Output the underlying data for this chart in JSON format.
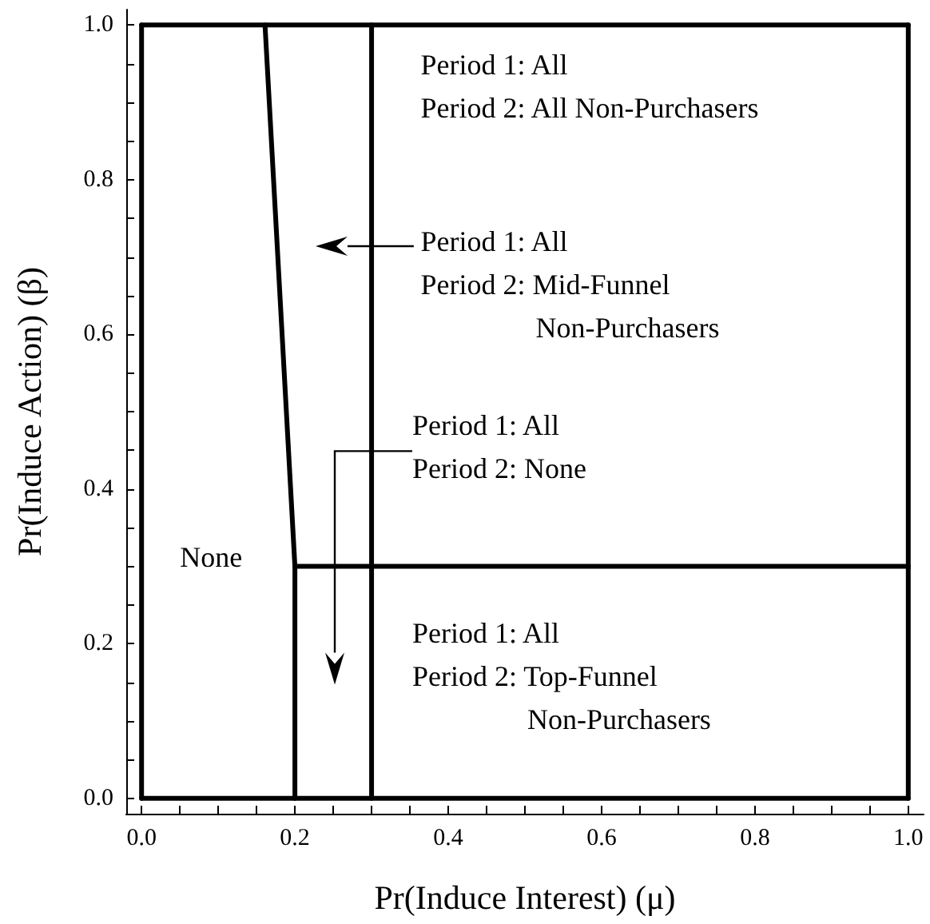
{
  "chart_data": {
    "type": "line",
    "xlabel": "Pr(Induce Interest) (μ)",
    "ylabel": "Pr(Induce Action) (β)",
    "xlim": [
      -0.02,
      1.02
    ],
    "ylim": [
      -0.02,
      1.02
    ],
    "xticks": [
      {
        "value": 0,
        "label": "0.0"
      },
      {
        "value": 0.05,
        "label": null
      },
      {
        "value": 0.1,
        "label": null
      },
      {
        "value": 0.15,
        "label": null
      },
      {
        "value": 0.2,
        "label": "0.2"
      },
      {
        "value": 0.25,
        "label": null
      },
      {
        "value": 0.3,
        "label": null
      },
      {
        "value": 0.35,
        "label": null
      },
      {
        "value": 0.4,
        "label": "0.4"
      },
      {
        "value": 0.45,
        "label": null
      },
      {
        "value": 0.5,
        "label": null
      },
      {
        "value": 0.55,
        "label": null
      },
      {
        "value": 0.6,
        "label": "0.6"
      },
      {
        "value": 0.65,
        "label": null
      },
      {
        "value": 0.7,
        "label": null
      },
      {
        "value": 0.75,
        "label": null
      },
      {
        "value": 0.8,
        "label": "0.8"
      },
      {
        "value": 0.85,
        "label": null
      },
      {
        "value": 0.9,
        "label": null
      },
      {
        "value": 0.95,
        "label": null
      },
      {
        "value": 1,
        "label": "1.0"
      }
    ],
    "yticks": [
      {
        "value": 0,
        "label": "0.0"
      },
      {
        "value": 0.05,
        "label": null
      },
      {
        "value": 0.1,
        "label": null
      },
      {
        "value": 0.15,
        "label": null
      },
      {
        "value": 0.2,
        "label": "0.2"
      },
      {
        "value": 0.25,
        "label": null
      },
      {
        "value": 0.3,
        "label": null
      },
      {
        "value": 0.35,
        "label": null
      },
      {
        "value": 0.4,
        "label": "0.4"
      },
      {
        "value": 0.45,
        "label": null
      },
      {
        "value": 0.5,
        "label": null
      },
      {
        "value": 0.55,
        "label": null
      },
      {
        "value": 0.6,
        "label": "0.6"
      },
      {
        "value": 0.65,
        "label": null
      },
      {
        "value": 0.7,
        "label": null
      },
      {
        "value": 0.75,
        "label": null
      },
      {
        "value": 0.8,
        "label": "0.8"
      },
      {
        "value": 0.85,
        "label": null
      },
      {
        "value": 0.9,
        "label": null
      },
      {
        "value": 0.95,
        "label": null
      },
      {
        "value": 1,
        "label": "1.0"
      }
    ],
    "series": [
      {
        "color": "#000000",
        "x": [
          0.161,
          0.2,
          0.2
        ],
        "values": [
          1,
          0.3,
          0
        ]
      },
      {
        "color": "#000000",
        "x": [
          0.2,
          1
        ],
        "values": [
          0.3,
          0.3
        ]
      }
    ],
    "ref_lines": [
      {
        "axis": "x",
        "value": 0,
        "color": "#000000"
      },
      {
        "axis": "x",
        "value": 1,
        "color": "#000000"
      },
      {
        "axis": "x",
        "value": 0.3,
        "color": "#000000"
      },
      {
        "axis": "y",
        "value": 0,
        "color": "#000000"
      },
      {
        "axis": "y",
        "value": 1,
        "color": "#000000"
      }
    ],
    "annotations": [
      "Period 1: All\nPeriod 2: All Non-Purchasers",
      "Period 1: All\nPeriod 2: Mid-Funnel\nNon-Purchasers",
      "Period 1: All\nPeriod 2: None",
      "None",
      "Period 1: All\nPeriod 2: Top-Funnel\nNon-Purchasers"
    ],
    "grid": false,
    "marker": "none",
    "line_style": "solid"
  }
}
